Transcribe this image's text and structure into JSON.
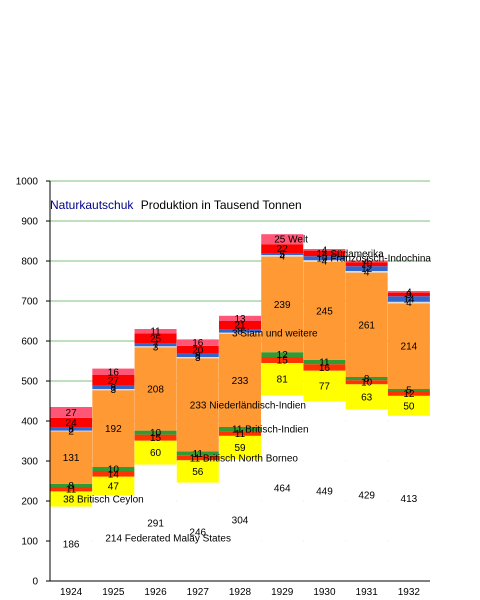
{
  "chart_data": {
    "type": "bar",
    "stacked": true,
    "title_highlight": "Naturkautschuk",
    "title_rest": "Produktion in Tausend Tonnen",
    "categories": [
      "1924",
      "1925",
      "1926",
      "1927",
      "1928",
      "1929",
      "1930",
      "1931",
      "1932"
    ],
    "ylim": [
      0,
      1000
    ],
    "yticks": [
      0,
      100,
      200,
      300,
      400,
      500,
      600,
      700,
      800,
      900,
      1000
    ],
    "grid": true,
    "colors": {
      "title_highlight": "#00008b",
      "grid": "#55aa55",
      "axis": "#000000"
    },
    "series": [
      {
        "name": "Federated Malay States",
        "color": "#ffffff",
        "values": [
          186,
          214,
          291,
          246,
          304,
          464,
          449,
          429,
          413
        ]
      },
      {
        "name": "Britisch Ceylon",
        "color": "#ffff00",
        "values": [
          38,
          47,
          60,
          56,
          59,
          81,
          77,
          63,
          50
        ]
      },
      {
        "name": "Britisch North Borneo",
        "color": "#ff3300",
        "values": [
          11,
          14,
          15,
          11,
          11,
          15,
          16,
          10,
          12
        ]
      },
      {
        "name": "Britisch-Indien",
        "color": "#339933",
        "values": [
          8,
          10,
          10,
          11,
          11,
          12,
          11,
          8,
          5
        ]
      },
      {
        "name": "Niederländisch-Indien",
        "color": "#ff9933",
        "values": [
          131,
          192,
          208,
          233,
          233,
          239,
          245,
          261,
          214
        ]
      },
      {
        "name": "Siam und weitere",
        "color": "#dddddd",
        "values": [
          2,
          3,
          3,
          3,
          3,
          4,
          4,
          4,
          4
        ]
      },
      {
        "name": "Französisch-Indochina",
        "color": "#3366cc",
        "values": [
          8,
          8,
          7,
          8,
          8,
          5,
          10,
          12,
          14
        ]
      },
      {
        "name": "Südamerika",
        "color": "#ff0000",
        "values": [
          24,
          27,
          25,
          20,
          21,
          22,
          14,
          10,
          9
        ]
      },
      {
        "name": "Welt",
        "color": "#ff5577",
        "values": [
          27,
          16,
          11,
          16,
          13,
          25,
          4,
          4,
          4
        ]
      }
    ],
    "value_labels": [
      {
        "series": 0,
        "idx": 0,
        "text": "186",
        "dy": 0
      },
      {
        "series": 0,
        "idx": 1,
        "text": "214 Federated Malay States",
        "dy": 0,
        "anchor": "start"
      },
      {
        "series": 0,
        "idx": 2,
        "text": "291",
        "dy": 0
      },
      {
        "series": 0,
        "idx": 3,
        "text": "246",
        "dy": 0
      },
      {
        "series": 0,
        "idx": 4,
        "text": "304",
        "dy": 0
      },
      {
        "series": 0,
        "idx": 5,
        "text": "464",
        "dy": 0
      },
      {
        "series": 0,
        "idx": 6,
        "text": "449",
        "dy": 0
      },
      {
        "series": 0,
        "idx": 7,
        "text": "429",
        "dy": 0
      },
      {
        "series": 0,
        "idx": 8,
        "text": "413",
        "dy": 0
      },
      {
        "series": 1,
        "idx": 0,
        "text": "38 Britisch Ceylon",
        "dy": 0,
        "anchor": "start"
      },
      {
        "series": 1,
        "idx": 1,
        "text": "47",
        "dy": 0
      },
      {
        "series": 1,
        "idx": 2,
        "text": "60",
        "dy": 0
      },
      {
        "series": 1,
        "idx": 3,
        "text": "56",
        "dy": 0
      },
      {
        "series": 1,
        "idx": 4,
        "text": "59",
        "dy": 0
      },
      {
        "series": 1,
        "idx": 5,
        "text": "81",
        "dy": 0
      },
      {
        "series": 1,
        "idx": 6,
        "text": "77",
        "dy": 0
      },
      {
        "series": 1,
        "idx": 7,
        "text": "63",
        "dy": 0
      },
      {
        "series": 1,
        "idx": 8,
        "text": "50",
        "dy": 0
      },
      {
        "series": 2,
        "idx": 0,
        "text": "11",
        "dy": 0
      },
      {
        "series": 2,
        "idx": 1,
        "text": "14",
        "dy": 0
      },
      {
        "series": 2,
        "idx": 2,
        "text": "15",
        "dy": 0
      },
      {
        "series": 2,
        "idx": 3,
        "text": "11 Britisch North Borneo",
        "dy": 0,
        "anchor": "start"
      },
      {
        "series": 2,
        "idx": 4,
        "text": "11",
        "dy": 0
      },
      {
        "series": 2,
        "idx": 5,
        "text": "15",
        "dy": 0
      },
      {
        "series": 2,
        "idx": 6,
        "text": "16",
        "dy": 0
      },
      {
        "series": 2,
        "idx": 7,
        "text": "10",
        "dy": 0
      },
      {
        "series": 2,
        "idx": 8,
        "text": "12",
        "dy": 0
      },
      {
        "series": 3,
        "idx": 0,
        "text": "8",
        "dy": 0
      },
      {
        "series": 3,
        "idx": 1,
        "text": "10",
        "dy": 0
      },
      {
        "series": 3,
        "idx": 2,
        "text": "10",
        "dy": 0
      },
      {
        "series": 3,
        "idx": 3,
        "text": "11",
        "dy": 0
      },
      {
        "series": 3,
        "idx": 4,
        "text": "11 Britisch-Indien",
        "dy": 0,
        "anchor": "start"
      },
      {
        "series": 3,
        "idx": 5,
        "text": "12",
        "dy": 0
      },
      {
        "series": 3,
        "idx": 6,
        "text": "11",
        "dy": 0
      },
      {
        "series": 3,
        "idx": 7,
        "text": "8",
        "dy": 0
      },
      {
        "series": 3,
        "idx": 8,
        "text": "5",
        "dy": 0
      },
      {
        "series": 4,
        "idx": 0,
        "text": "131",
        "dy": 0
      },
      {
        "series": 4,
        "idx": 1,
        "text": "192",
        "dy": 0
      },
      {
        "series": 4,
        "idx": 2,
        "text": "208",
        "dy": 0
      },
      {
        "series": 4,
        "idx": 3,
        "text": "233 Niederländisch-Indien",
        "dy": 0,
        "anchor": "start"
      },
      {
        "series": 4,
        "idx": 4,
        "text": "233",
        "dy": 0
      },
      {
        "series": 4,
        "idx": 5,
        "text": "239",
        "dy": 0
      },
      {
        "series": 4,
        "idx": 6,
        "text": "245",
        "dy": 0
      },
      {
        "series": 4,
        "idx": 7,
        "text": "261",
        "dy": 0
      },
      {
        "series": 4,
        "idx": 8,
        "text": "214",
        "dy": 0
      },
      {
        "series": 5,
        "idx": 0,
        "text": "2",
        "dy": 0
      },
      {
        "series": 5,
        "idx": 1,
        "text": "3",
        "dy": 0
      },
      {
        "series": 5,
        "idx": 2,
        "text": "3",
        "dy": 0
      },
      {
        "series": 5,
        "idx": 3,
        "text": "3",
        "dy": 0
      },
      {
        "series": 5,
        "idx": 4,
        "text": "3 Siam und weitere",
        "dy": 0,
        "anchor": "start"
      },
      {
        "series": 5,
        "idx": 5,
        "text": "4",
        "dy": 0
      },
      {
        "series": 5,
        "idx": 6,
        "text": "4",
        "dy": 0
      },
      {
        "series": 5,
        "idx": 7,
        "text": "4",
        "dy": 0
      },
      {
        "series": 5,
        "idx": 8,
        "text": "4",
        "dy": 0
      },
      {
        "series": 6,
        "idx": 0,
        "text": "8",
        "dy": 0
      },
      {
        "series": 6,
        "idx": 1,
        "text": "8",
        "dy": 0
      },
      {
        "series": 6,
        "idx": 2,
        "text": "7",
        "dy": 0
      },
      {
        "series": 6,
        "idx": 3,
        "text": "8",
        "dy": 0
      },
      {
        "series": 6,
        "idx": 4,
        "text": "8",
        "dy": 0
      },
      {
        "series": 6,
        "idx": 5,
        "text": "5",
        "dy": 0
      },
      {
        "series": 6,
        "idx": 6,
        "text": "10 Französisch-Indochina",
        "dy": 0,
        "anchor": "start"
      },
      {
        "series": 6,
        "idx": 7,
        "text": "12",
        "dy": 0
      },
      {
        "series": 6,
        "idx": 8,
        "text": "14",
        "dy": 0
      },
      {
        "series": 7,
        "idx": 0,
        "text": "24",
        "dy": 0
      },
      {
        "series": 7,
        "idx": 1,
        "text": "27",
        "dy": 0
      },
      {
        "series": 7,
        "idx": 2,
        "text": "25",
        "dy": 0
      },
      {
        "series": 7,
        "idx": 3,
        "text": "20",
        "dy": 0
      },
      {
        "series": 7,
        "idx": 4,
        "text": "21",
        "dy": 0
      },
      {
        "series": 7,
        "idx": 5,
        "text": "22",
        "dy": 0
      },
      {
        "series": 7,
        "idx": 6,
        "text": "14 Südamerika",
        "dy": 0,
        "anchor": "start"
      },
      {
        "series": 7,
        "idx": 7,
        "text": "10",
        "dy": 0
      },
      {
        "series": 7,
        "idx": 8,
        "text": "9",
        "dy": 0
      },
      {
        "series": 8,
        "idx": 0,
        "text": "27",
        "dy": 0
      },
      {
        "series": 8,
        "idx": 1,
        "text": "16",
        "dy": 0
      },
      {
        "series": 8,
        "idx": 2,
        "text": "11",
        "dy": 0
      },
      {
        "series": 8,
        "idx": 3,
        "text": "16",
        "dy": 0
      },
      {
        "series": 8,
        "idx": 4,
        "text": "13",
        "dy": 0
      },
      {
        "series": 8,
        "idx": 5,
        "text": "25 Welt",
        "dy": 0,
        "anchor": "start"
      },
      {
        "series": 8,
        "idx": 6,
        "text": "4",
        "dy": 0
      },
      {
        "series": 8,
        "idx": 7,
        "text": "4",
        "dy": 0
      },
      {
        "series": 8,
        "idx": 8,
        "text": "4",
        "dy": 0
      }
    ]
  }
}
